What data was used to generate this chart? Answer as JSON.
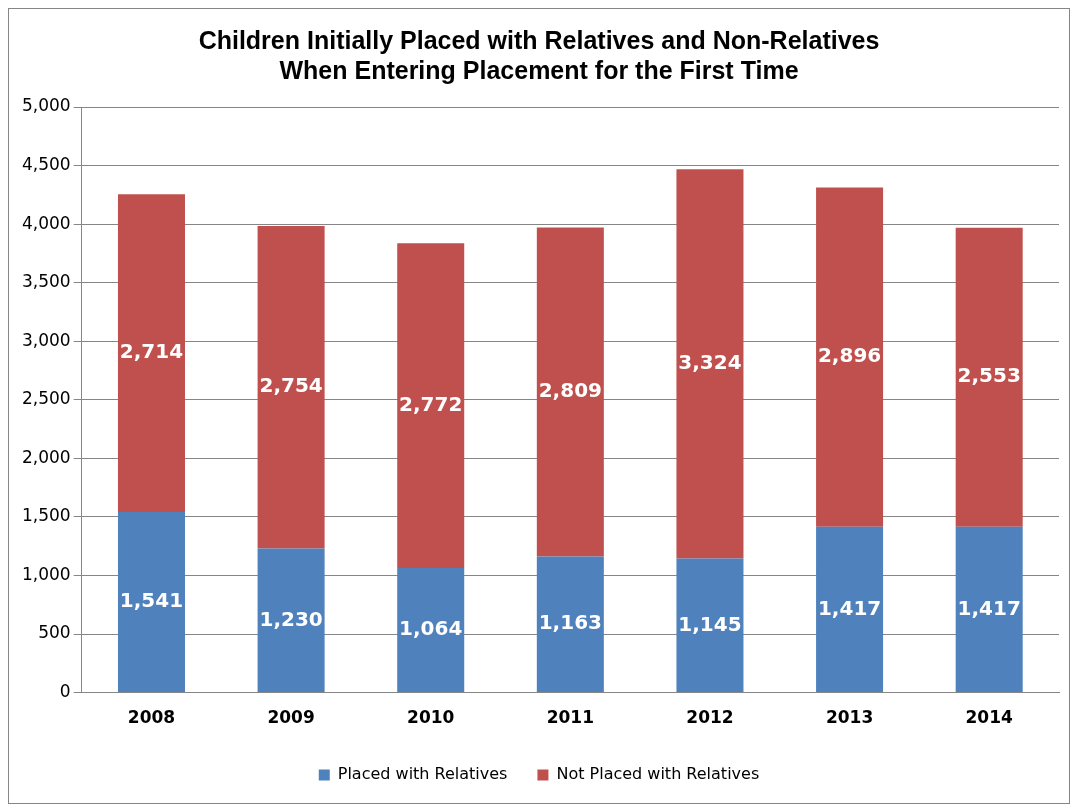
{
  "chart_data": {
    "type": "bar",
    "title": [
      "Children Initially Placed with Relatives and Non-Relatives",
      "When Entering Placement for the First Time"
    ],
    "categories": [
      "2008",
      "2009",
      "2010",
      "2011",
      "2012",
      "2013",
      "2014"
    ],
    "series": [
      {
        "name": "Placed with Relatives",
        "color": "#4f81bd",
        "values": [
          1541,
          1230,
          1064,
          1163,
          1145,
          1417,
          1417
        ],
        "value_labels": [
          "1,541",
          "1,230",
          "1,064",
          "1,163",
          "1,145",
          "1,417",
          "1,417"
        ]
      },
      {
        "name": "Not Placed with Relatives",
        "color": "#c0504d",
        "values": [
          2714,
          2754,
          2772,
          2809,
          3324,
          2896,
          2553
        ],
        "value_labels": [
          "2,714",
          "2,754",
          "2,772",
          "2,809",
          "3,324",
          "2,896",
          "2,553"
        ]
      }
    ],
    "stacked": true,
    "grid": "y",
    "legend": "bottom",
    "ylim": [
      0,
      5000
    ],
    "yticks": [
      {
        "value": 0,
        "label": "0"
      },
      {
        "value": 500,
        "label": "500"
      },
      {
        "value": 1000,
        "label": "1,000"
      },
      {
        "value": 1500,
        "label": "1,500"
      },
      {
        "value": 2000,
        "label": "2,000"
      },
      {
        "value": 2500,
        "label": "2,500"
      },
      {
        "value": 3000,
        "label": "3,000"
      },
      {
        "value": 3500,
        "label": "3,500"
      },
      {
        "value": 4000,
        "label": "4,000"
      },
      {
        "value": 4500,
        "label": "4,500"
      },
      {
        "value": 5000,
        "label": "5,000"
      }
    ]
  }
}
